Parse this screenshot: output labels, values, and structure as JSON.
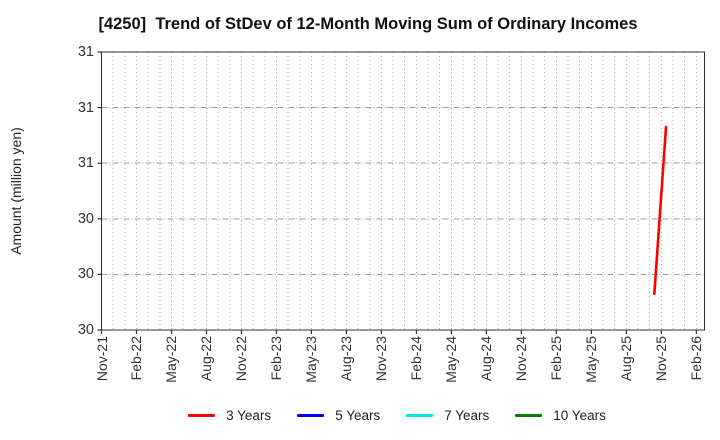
{
  "chart_data": {
    "type": "line",
    "title": "[4250]  Trend of StDev of 12-Month Moving Sum of Ordinary Incomes",
    "ylabel": "Amount (million yen)",
    "ylim": [
      30.0,
      31.0
    ],
    "y_ticks": [
      {
        "value": 31.0,
        "label": "31"
      },
      {
        "value": 30.8,
        "label": "31"
      },
      {
        "value": 30.6,
        "label": "31"
      },
      {
        "value": 30.4,
        "label": "30"
      },
      {
        "value": 30.2,
        "label": "30"
      },
      {
        "value": 30.0,
        "label": "30"
      }
    ],
    "x_axis": {
      "tick_labels": [
        "Nov-21",
        "Feb-22",
        "May-22",
        "Aug-22",
        "Nov-22",
        "Feb-23",
        "May-23",
        "Aug-23",
        "Nov-23",
        "Feb-24",
        "May-24",
        "Aug-24",
        "Nov-24",
        "Feb-25",
        "May-25",
        "Aug-25",
        "Nov-25",
        "Feb-26"
      ],
      "months_between_ticks": 3,
      "total_months": 51.7,
      "minor_grid_every_month": true
    },
    "grid": {
      "vertical_style": "dotted",
      "horizontal_style": "dash-dot",
      "vertical_color": "#a8a8a8",
      "horizontal_color": "#9c9c9c"
    },
    "legend_position": "bottom",
    "series": [
      {
        "name": "3 Years",
        "color": "#ff0000",
        "points": [
          {
            "month": "Oct-25",
            "month_index": 47.4,
            "value": 30.13
          },
          {
            "month": "Nov-25",
            "month_index": 48.4,
            "value": 30.73
          }
        ]
      },
      {
        "name": "5 Years",
        "color": "#0000ff",
        "points": []
      },
      {
        "name": "7 Years",
        "color": "#00e5e5",
        "points": []
      },
      {
        "name": "10 Years",
        "color": "#008000",
        "points": []
      }
    ]
  }
}
